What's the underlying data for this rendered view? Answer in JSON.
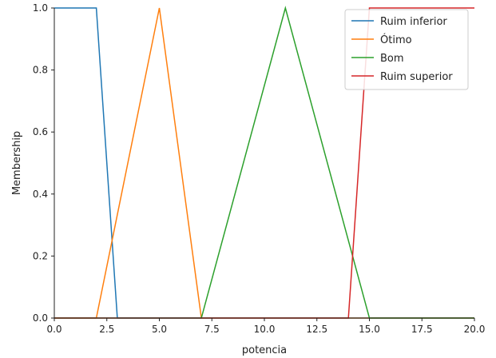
{
  "chart_data": {
    "type": "line",
    "xlabel": "potencia",
    "ylabel": "Membership",
    "xlim": [
      0,
      20
    ],
    "ylim": [
      0,
      1
    ],
    "xticks": [
      0.0,
      2.5,
      5.0,
      7.5,
      10.0,
      12.5,
      15.0,
      17.5,
      20.0
    ],
    "xtick_labels": [
      "0.0",
      "2.5",
      "5.0",
      "7.5",
      "10.0",
      "12.5",
      "15.0",
      "17.5",
      "20.0"
    ],
    "yticks": [
      0.0,
      0.2,
      0.4,
      0.6,
      0.8,
      1.0
    ],
    "ytick_labels": [
      "0.0",
      "0.2",
      "0.4",
      "0.6",
      "0.8",
      "1.0"
    ],
    "grid": false,
    "legend_position": "top-right",
    "series": [
      {
        "name": "Ruim inferior",
        "color": "#1f77b4",
        "x": [
          0,
          2,
          3,
          20
        ],
        "y": [
          1,
          1,
          0,
          0
        ]
      },
      {
        "name": "Ótimo",
        "color": "#ff7f0e",
        "x": [
          0,
          2,
          5,
          7,
          20
        ],
        "y": [
          0,
          0,
          1,
          0,
          0
        ]
      },
      {
        "name": "Bom",
        "color": "#2ca02c",
        "x": [
          0,
          7,
          11,
          15,
          20
        ],
        "y": [
          0,
          0,
          1,
          0,
          0
        ]
      },
      {
        "name": "Ruim superior",
        "color": "#d62728",
        "x": [
          0,
          14,
          15,
          20
        ],
        "y": [
          0,
          0,
          1,
          1
        ]
      }
    ]
  }
}
